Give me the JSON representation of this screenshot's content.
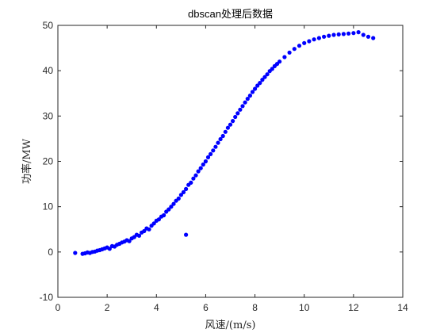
{
  "chart_data": {
    "type": "scatter",
    "title": "dbscan处理后数据",
    "xlabel": "风速/(m/s)",
    "ylabel": "功率/MW",
    "xlim": [
      0,
      14
    ],
    "ylim": [
      -10,
      50
    ],
    "xticks": [
      "0",
      "2",
      "4",
      "6",
      "8",
      "10",
      "12",
      "14"
    ],
    "yticks": [
      "-10",
      "0",
      "10",
      "20",
      "30",
      "40",
      "50"
    ],
    "grid": false,
    "legend": "none",
    "marker_color": "#0000ff",
    "series": [
      {
        "name": "",
        "points": [
          [
            0.7,
            -0.2
          ],
          [
            1.0,
            -0.4
          ],
          [
            1.1,
            -0.3
          ],
          [
            1.2,
            -0.1
          ],
          [
            1.3,
            -0.2
          ],
          [
            1.4,
            0.0
          ],
          [
            1.5,
            0.1
          ],
          [
            1.6,
            0.3
          ],
          [
            1.7,
            0.4
          ],
          [
            1.8,
            0.6
          ],
          [
            1.9,
            0.8
          ],
          [
            2.0,
            1.0
          ],
          [
            2.1,
            0.7
          ],
          [
            2.2,
            1.3
          ],
          [
            2.3,
            1.2
          ],
          [
            2.4,
            1.6
          ],
          [
            2.5,
            1.8
          ],
          [
            2.6,
            2.1
          ],
          [
            2.7,
            2.3
          ],
          [
            2.8,
            2.6
          ],
          [
            2.9,
            2.4
          ],
          [
            3.0,
            3.0
          ],
          [
            3.1,
            3.3
          ],
          [
            3.2,
            3.8
          ],
          [
            3.3,
            3.6
          ],
          [
            3.4,
            4.3
          ],
          [
            3.5,
            4.6
          ],
          [
            3.6,
            5.2
          ],
          [
            3.7,
            5.0
          ],
          [
            3.8,
            5.8
          ],
          [
            3.9,
            6.3
          ],
          [
            4.0,
            6.9
          ],
          [
            4.1,
            7.2
          ],
          [
            4.2,
            7.8
          ],
          [
            4.3,
            8.1
          ],
          [
            4.4,
            8.9
          ],
          [
            4.5,
            9.4
          ],
          [
            4.6,
            10.0
          ],
          [
            4.7,
            10.6
          ],
          [
            4.8,
            11.3
          ],
          [
            4.9,
            11.8
          ],
          [
            5.0,
            12.6
          ],
          [
            5.1,
            13.2
          ],
          [
            5.2,
            13.9
          ],
          [
            5.2,
            3.8
          ],
          [
            5.3,
            14.8
          ],
          [
            5.4,
            15.3
          ],
          [
            5.5,
            16.2
          ],
          [
            5.6,
            16.9
          ],
          [
            5.7,
            17.8
          ],
          [
            5.8,
            18.5
          ],
          [
            5.9,
            19.3
          ],
          [
            6.0,
            20.0
          ],
          [
            6.1,
            20.9
          ],
          [
            6.2,
            21.6
          ],
          [
            6.3,
            22.4
          ],
          [
            6.4,
            23.2
          ],
          [
            6.5,
            24.1
          ],
          [
            6.6,
            24.9
          ],
          [
            6.7,
            25.6
          ],
          [
            6.8,
            26.5
          ],
          [
            6.9,
            27.4
          ],
          [
            7.0,
            28.1
          ],
          [
            7.1,
            28.9
          ],
          [
            7.2,
            29.8
          ],
          [
            7.3,
            30.6
          ],
          [
            7.4,
            31.4
          ],
          [
            7.5,
            32.2
          ],
          [
            7.6,
            33.0
          ],
          [
            7.7,
            33.8
          ],
          [
            7.8,
            34.5
          ],
          [
            7.9,
            35.3
          ],
          [
            8.0,
            36.0
          ],
          [
            8.1,
            36.7
          ],
          [
            8.2,
            37.3
          ],
          [
            8.3,
            38.0
          ],
          [
            8.4,
            38.6
          ],
          [
            8.5,
            39.2
          ],
          [
            8.6,
            39.9
          ],
          [
            8.7,
            40.4
          ],
          [
            8.8,
            41.0
          ],
          [
            8.9,
            41.5
          ],
          [
            9.0,
            42.0
          ],
          [
            9.2,
            43.0
          ],
          [
            9.4,
            44.0
          ],
          [
            9.6,
            44.8
          ],
          [
            9.8,
            45.5
          ],
          [
            10.0,
            46.1
          ],
          [
            10.2,
            46.5
          ],
          [
            10.4,
            46.9
          ],
          [
            10.6,
            47.2
          ],
          [
            10.8,
            47.5
          ],
          [
            11.0,
            47.7
          ],
          [
            11.2,
            47.9
          ],
          [
            11.4,
            48.0
          ],
          [
            11.6,
            48.1
          ],
          [
            11.8,
            48.2
          ],
          [
            12.0,
            48.3
          ],
          [
            12.2,
            48.5
          ],
          [
            12.4,
            47.9
          ],
          [
            12.6,
            47.5
          ],
          [
            12.8,
            47.2
          ]
        ]
      }
    ]
  }
}
